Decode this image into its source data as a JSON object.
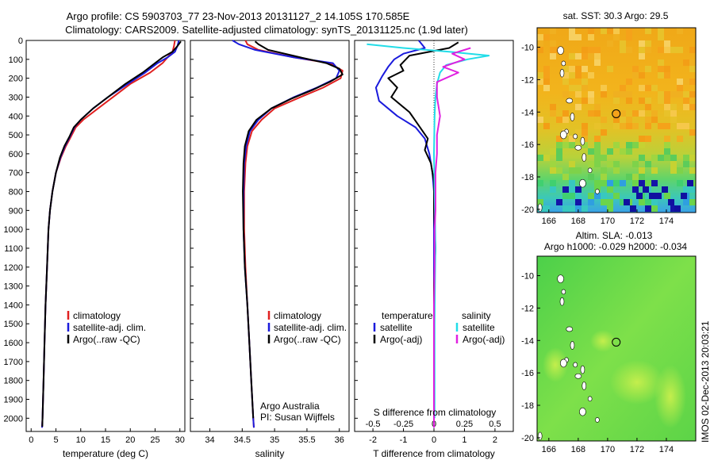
{
  "header": {
    "line1": "Argo profile: CS 5903703_77 23-Nov-2013 20131127_2 14.105S 170.585E",
    "line2": "Climatology: CARS2009. Satellite-adjusted climatology: synTS_20131125.nc (1.9d later)"
  },
  "colors": {
    "climatology": "#e02020",
    "satellite": "#1a1adc",
    "argo": "#000000",
    "satellite_salinity": "#22dde8",
    "argo_salinity": "#e020e0"
  },
  "chart_data": [
    {
      "type": "line",
      "xlabel": "temperature (deg C)",
      "xlim": [
        -1,
        31
      ],
      "ylim": [
        2070,
        0
      ],
      "xticks": [
        "0",
        "5",
        "10",
        "15",
        "20",
        "25",
        "30"
      ],
      "xtick_values": [
        0,
        5,
        10,
        15,
        20,
        25,
        30
      ],
      "yticks": [
        "0",
        "100",
        "200",
        "300",
        "400",
        "500",
        "600",
        "700",
        "800",
        "900",
        "1000",
        "1100",
        "1200",
        "1300",
        "1400",
        "1500",
        "1600",
        "1700",
        "1800",
        "1900",
        "2000"
      ],
      "ytick_values": [
        0,
        100,
        200,
        300,
        400,
        500,
        600,
        700,
        800,
        900,
        1000,
        1100,
        1200,
        1300,
        1400,
        1500,
        1600,
        1700,
        1800,
        1900,
        2000
      ],
      "legend": [
        "climatology",
        "satellite-adj. clim.",
        "Argo(..raw -QC)"
      ],
      "series": [
        {
          "name": "climatology",
          "color": "#e02020",
          "points": [
            [
              29,
              0
            ],
            [
              28.8,
              30
            ],
            [
              28.5,
              60
            ],
            [
              27.5,
              90
            ],
            [
              26.5,
              120
            ],
            [
              24,
              170
            ],
            [
              20,
              230
            ],
            [
              16.5,
              300
            ],
            [
              13.5,
              360
            ],
            [
              10.5,
              420
            ],
            [
              9,
              460
            ],
            [
              8,
              510
            ],
            [
              7,
              560
            ],
            [
              6,
              620
            ],
            [
              5,
              700
            ],
            [
              4.3,
              800
            ],
            [
              3.8,
              900
            ],
            [
              3.5,
              1000
            ],
            [
              3.2,
              1200
            ],
            [
              2.9,
              1400
            ],
            [
              2.7,
              1600
            ],
            [
              2.5,
              1800
            ],
            [
              2.3,
              2000
            ],
            [
              2.2,
              2050
            ]
          ]
        },
        {
          "name": "satellite-adj. clim.",
          "color": "#1a1adc",
          "points": [
            [
              29.8,
              0
            ],
            [
              29.5,
              30
            ],
            [
              29,
              60
            ],
            [
              27.5,
              90
            ],
            [
              25.5,
              120
            ],
            [
              23,
              170
            ],
            [
              19.5,
              230
            ],
            [
              15.5,
              300
            ],
            [
              12.5,
              360
            ],
            [
              10,
              420
            ],
            [
              8.7,
              460
            ],
            [
              7.8,
              510
            ],
            [
              6.8,
              560
            ],
            [
              5.9,
              620
            ],
            [
              5,
              700
            ],
            [
              4.3,
              800
            ],
            [
              3.8,
              900
            ],
            [
              3.5,
              1000
            ],
            [
              3.2,
              1200
            ],
            [
              2.9,
              1400
            ],
            [
              2.7,
              1600
            ],
            [
              2.5,
              1800
            ],
            [
              2.3,
              2000
            ],
            [
              2.2,
              2050
            ]
          ]
        },
        {
          "name": "Argo(..raw -QC)",
          "color": "#000000",
          "points": [
            [
              30.2,
              5
            ],
            [
              29.5,
              30
            ],
            [
              28.5,
              60
            ],
            [
              26.5,
              90
            ],
            [
              25,
              120
            ],
            [
              22.5,
              170
            ],
            [
              19,
              230
            ],
            [
              15.5,
              300
            ],
            [
              12.5,
              360
            ],
            [
              10,
              420
            ],
            [
              8.6,
              460
            ],
            [
              7.7,
              510
            ],
            [
              6.7,
              560
            ],
            [
              5.8,
              620
            ],
            [
              5,
              700
            ],
            [
              4.3,
              800
            ],
            [
              3.8,
              900
            ],
            [
              3.5,
              1000
            ],
            [
              3.2,
              1200
            ],
            [
              2.9,
              1400
            ],
            [
              2.7,
              1600
            ],
            [
              2.5,
              1800
            ],
            [
              2.3,
              2000
            ],
            [
              2.25,
              2045
            ]
          ]
        }
      ]
    },
    {
      "type": "line",
      "xlabel": "salinity",
      "xlim": [
        33.7,
        36.15
      ],
      "ylim": [
        2070,
        0
      ],
      "xticks": [
        "34",
        "34.5",
        "35",
        "35.5",
        "36"
      ],
      "xtick_values": [
        34,
        34.5,
        35,
        35.5,
        36
      ],
      "legend": [
        "climatology",
        "satellite-adj. clim.",
        "Argo(..raw -QC)"
      ],
      "annotation": [
        "Argo Australia",
        "PI: Susan Wijffels"
      ],
      "series": [
        {
          "name": "climatology",
          "color": "#e02020",
          "points": [
            [
              34.55,
              0
            ],
            [
              34.58,
              20
            ],
            [
              34.75,
              50
            ],
            [
              35.3,
              90
            ],
            [
              35.85,
              120
            ],
            [
              36.05,
              160
            ],
            [
              36.02,
              200
            ],
            [
              35.75,
              250
            ],
            [
              35.4,
              300
            ],
            [
              35.0,
              360
            ],
            [
              34.8,
              420
            ],
            [
              34.65,
              480
            ],
            [
              34.58,
              560
            ],
            [
              34.55,
              650
            ],
            [
              34.53,
              800
            ],
            [
              34.53,
              1000
            ],
            [
              34.55,
              1200
            ],
            [
              34.58,
              1400
            ],
            [
              34.61,
              1600
            ],
            [
              34.64,
              1800
            ],
            [
              34.67,
              2000
            ],
            [
              34.68,
              2050
            ]
          ]
        },
        {
          "name": "satellite-adj. clim.",
          "color": "#1a1adc",
          "points": [
            [
              34.35,
              0
            ],
            [
              34.45,
              20
            ],
            [
              34.7,
              50
            ],
            [
              35.3,
              90
            ],
            [
              35.9,
              120
            ],
            [
              36.0,
              160
            ],
            [
              35.95,
              200
            ],
            [
              35.65,
              250
            ],
            [
              35.3,
              300
            ],
            [
              34.95,
              360
            ],
            [
              34.75,
              420
            ],
            [
              34.62,
              480
            ],
            [
              34.56,
              560
            ],
            [
              34.53,
              650
            ],
            [
              34.52,
              800
            ],
            [
              34.52,
              1000
            ],
            [
              34.54,
              1200
            ],
            [
              34.58,
              1400
            ],
            [
              34.61,
              1600
            ],
            [
              34.64,
              1800
            ],
            [
              34.67,
              2000
            ],
            [
              34.68,
              2050
            ]
          ]
        },
        {
          "name": "Argo(..raw -QC)",
          "color": "#000000",
          "points": [
            [
              34.7,
              5
            ],
            [
              34.75,
              20
            ],
            [
              34.9,
              50
            ],
            [
              35.4,
              90
            ],
            [
              35.8,
              120
            ],
            [
              36.0,
              150
            ],
            [
              36.05,
              180
            ],
            [
              35.85,
              220
            ],
            [
              35.6,
              260
            ],
            [
              35.25,
              310
            ],
            [
              34.95,
              360
            ],
            [
              34.72,
              420
            ],
            [
              34.6,
              480
            ],
            [
              34.54,
              560
            ],
            [
              34.52,
              650
            ],
            [
              34.51,
              800
            ],
            [
              34.52,
              1000
            ],
            [
              34.54,
              1200
            ],
            [
              34.58,
              1400
            ],
            [
              34.61,
              1600
            ],
            [
              34.64,
              1800
            ],
            [
              34.67,
              2000
            ]
          ]
        }
      ]
    },
    {
      "type": "line",
      "xlabel": "T difference from climatology",
      "xlabel_top": "S difference from climatology",
      "xlim": [
        -2.6,
        2.6
      ],
      "ylim": [
        2070,
        0
      ],
      "xticks": [
        "-2",
        "-1",
        "0",
        "1",
        "2"
      ],
      "xtick_values": [
        -2,
        -1,
        0,
        1,
        2
      ],
      "xticks_top": [
        "-0.5",
        "-0.25",
        "0",
        "0.25",
        "0.5"
      ],
      "xtick_top_values": [
        -0.5,
        -0.25,
        0,
        0.25,
        0.5
      ],
      "legend_temperature_title": "temperature",
      "legend_salinity_title": "salinity",
      "legend": [
        "satellite",
        "Argo(-adj)",
        "satellite",
        "Argo(-adj)"
      ],
      "series": [
        {
          "name": "satellite",
          "color": "#1a1adc",
          "quantity": "temperature",
          "points": [
            [
              -0.5,
              0
            ],
            [
              -0.3,
              40
            ],
            [
              -1.0,
              70
            ],
            [
              -1.3,
              100
            ],
            [
              -1.5,
              140
            ],
            [
              -1.7,
              190
            ],
            [
              -1.9,
              250
            ],
            [
              -1.8,
              320
            ],
            [
              -1.2,
              400
            ],
            [
              -0.6,
              460
            ],
            [
              -0.3,
              520
            ],
            [
              -0.15,
              600
            ],
            [
              -0.05,
              700
            ],
            [
              0,
              800
            ],
            [
              0,
              1000
            ],
            [
              0,
              2050
            ]
          ]
        },
        {
          "name": "Argo(-adj)",
          "color": "#000000",
          "quantity": "temperature",
          "points": [
            [
              0.8,
              10
            ],
            [
              0.5,
              40
            ],
            [
              -0.8,
              80
            ],
            [
              -1.1,
              130
            ],
            [
              -1.0,
              160
            ],
            [
              -1.5,
              200
            ],
            [
              -1.2,
              250
            ],
            [
              -1.4,
              300
            ],
            [
              -0.8,
              380
            ],
            [
              -0.5,
              450
            ],
            [
              -0.2,
              520
            ],
            [
              -0.3,
              580
            ],
            [
              -0.1,
              650
            ],
            [
              0,
              750
            ],
            [
              0,
              900
            ],
            [
              0.05,
              1100
            ],
            [
              0,
              1300
            ],
            [
              0,
              2040
            ]
          ]
        },
        {
          "name": "satellite",
          "color": "#22dde8",
          "quantity": "salinity",
          "points": [
            [
              -2.2,
              20
            ],
            [
              -1.0,
              40
            ],
            [
              0.5,
              60
            ],
            [
              1.8,
              80
            ],
            [
              1.1,
              100
            ],
            [
              0.4,
              130
            ],
            [
              0.2,
              170
            ],
            [
              0.1,
              230
            ],
            [
              0.05,
              300
            ],
            [
              0.02,
              400
            ],
            [
              0,
              600
            ],
            [
              0.02,
              800
            ],
            [
              0.05,
              1100
            ],
            [
              0.04,
              1200
            ],
            [
              0.03,
              1300
            ],
            [
              0.02,
              1500
            ],
            [
              0.02,
              2000
            ]
          ]
        },
        {
          "name": "Argo(-adj)",
          "color": "#e020e0",
          "quantity": "salinity",
          "points": [
            [
              1.2,
              40
            ],
            [
              0.6,
              70
            ],
            [
              1.0,
              100
            ],
            [
              0.3,
              140
            ],
            [
              0.8,
              170
            ],
            [
              0.1,
              220
            ],
            [
              0.1,
              300
            ],
            [
              0.2,
              400
            ],
            [
              0.1,
              500
            ],
            [
              0.1,
              600
            ],
            [
              0.05,
              700
            ],
            [
              0.05,
              900
            ],
            [
              0.02,
              1000
            ],
            [
              0.02,
              1200
            ],
            [
              0,
              1400
            ],
            [
              0,
              1600
            ],
            [
              0,
              1800
            ],
            [
              0,
              2000
            ],
            [
              0,
              2050
            ]
          ]
        }
      ]
    },
    {
      "type": "heatmap",
      "title": "sat. SST: 30.3 Argo: 29.5",
      "xticks": [
        "166",
        "168",
        "170",
        "172",
        "174"
      ],
      "xtick_values": [
        166,
        168,
        170,
        172,
        174
      ],
      "yticks": [
        "-10",
        "-12",
        "-14",
        "-16",
        "-18",
        "-20"
      ],
      "ytick_values": [
        -10,
        -12,
        -14,
        -16,
        -18,
        -20
      ],
      "xlim": [
        165.2,
        176
      ],
      "ylim": [
        -20.2,
        -8.8
      ],
      "marker": [
        170.585,
        -14.105
      ]
    },
    {
      "type": "heatmap",
      "title": "Altim. SLA: -0.013",
      "subtitle": "Argo h1000: -0.029 h2000: -0.034",
      "xticks": [
        "166",
        "168",
        "170",
        "172",
        "174"
      ],
      "xtick_values": [
        166,
        168,
        170,
        172,
        174
      ],
      "yticks": [
        "-10",
        "-12",
        "-14",
        "-16",
        "-18",
        "-20"
      ],
      "ytick_values": [
        -10,
        -12,
        -14,
        -16,
        -18,
        -20
      ],
      "xlim": [
        165.2,
        176
      ],
      "ylim": [
        -20.2,
        -8.8
      ],
      "marker": [
        170.585,
        -14.105
      ]
    }
  ],
  "footer": {
    "stamp": "IMOS 02-Dec-2013 20:03:21"
  }
}
